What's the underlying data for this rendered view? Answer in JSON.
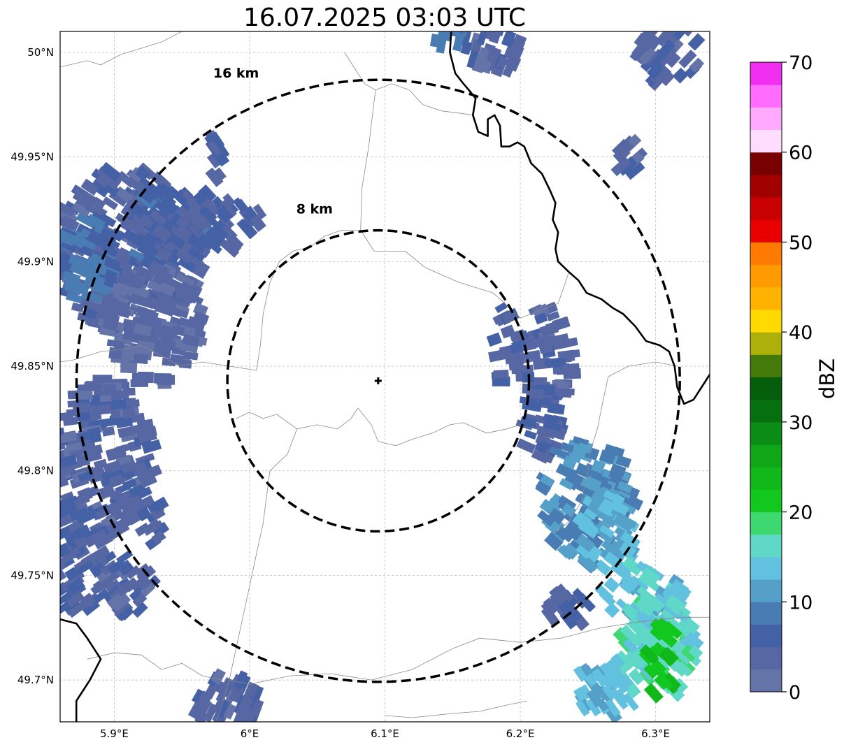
{
  "title": "16.07.2025 03:03 UTC",
  "map": {
    "lon_range": [
      5.86,
      6.34
    ],
    "lat_range": [
      49.68,
      50.01
    ],
    "lon_ticks": [
      {
        "value": 5.9,
        "label": "5.9°E"
      },
      {
        "value": 6.0,
        "label": "6°E"
      },
      {
        "value": 6.1,
        "label": "6.1°E"
      },
      {
        "value": 6.2,
        "label": "6.2°E"
      },
      {
        "value": 6.3,
        "label": "6.3°E"
      }
    ],
    "lat_ticks": [
      {
        "value": 50.0,
        "label": "50°N"
      },
      {
        "value": 49.95,
        "label": "49.95°N"
      },
      {
        "value": 49.9,
        "label": "49.9°N"
      },
      {
        "value": 49.85,
        "label": "49.85°N"
      },
      {
        "value": 49.8,
        "label": "49.8°N"
      },
      {
        "value": 49.75,
        "label": "49.75°N"
      },
      {
        "value": 49.7,
        "label": "49.7°N"
      }
    ],
    "grid": true,
    "radar_site": {
      "lon": 6.095,
      "lat": 49.843
    },
    "range_rings": [
      {
        "radius_km": 8,
        "label": "8 km",
        "label_lon": 6.048,
        "label_lat": 49.923
      },
      {
        "radius_km": 16,
        "label": "16 km",
        "label_lon": 5.99,
        "label_lat": 49.988
      }
    ],
    "country_border": [
      [
        6.149,
        50.01
      ],
      [
        6.148,
        50.0
      ],
      [
        6.152,
        49.99
      ],
      [
        6.158,
        49.985
      ],
      [
        6.162,
        49.982
      ],
      [
        6.167,
        49.978
      ],
      [
        6.165,
        49.97
      ],
      [
        6.169,
        49.962
      ],
      [
        6.176,
        49.96
      ],
      [
        6.176,
        49.968
      ],
      [
        6.181,
        49.97
      ],
      [
        6.185,
        49.965
      ],
      [
        6.186,
        49.955
      ],
      [
        6.192,
        49.955
      ],
      [
        6.198,
        49.957
      ],
      [
        6.203,
        49.955
      ],
      [
        6.208,
        49.947
      ],
      [
        6.216,
        49.942
      ],
      [
        6.222,
        49.934
      ],
      [
        6.226,
        49.928
      ],
      [
        6.224,
        49.92
      ],
      [
        6.228,
        49.914
      ],
      [
        6.226,
        49.906
      ],
      [
        6.228,
        49.9
      ],
      [
        6.236,
        49.895
      ],
      [
        6.243,
        49.891
      ],
      [
        6.249,
        49.885
      ],
      [
        6.26,
        49.882
      ],
      [
        6.268,
        49.878
      ],
      [
        6.276,
        49.875
      ],
      [
        6.285,
        49.869
      ],
      [
        6.293,
        49.862
      ],
      [
        6.303,
        49.86
      ],
      [
        6.31,
        49.857
      ],
      [
        6.314,
        49.85
      ],
      [
        6.316,
        49.84
      ],
      [
        6.321,
        49.832
      ],
      [
        6.328,
        49.834
      ],
      [
        6.334,
        49.84
      ],
      [
        6.34,
        49.846
      ]
    ],
    "border_sw": [
      [
        5.86,
        49.729
      ],
      [
        5.872,
        49.727
      ],
      [
        5.88,
        49.72
      ],
      [
        5.89,
        49.71
      ],
      [
        5.882,
        49.7
      ],
      [
        5.872,
        49.69
      ],
      [
        5.872,
        49.68
      ]
    ],
    "admin_lines": [
      [
        [
          5.86,
          49.993
        ],
        [
          5.88,
          49.996
        ],
        [
          5.89,
          49.994
        ],
        [
          5.905,
          49.999
        ],
        [
          5.92,
          50.002
        ],
        [
          5.935,
          50.005
        ],
        [
          5.95,
          50.01
        ]
      ],
      [
        [
          6.07,
          50.0
        ],
        [
          6.085,
          49.985
        ],
        [
          6.093,
          49.982
        ],
        [
          6.105,
          49.985
        ],
        [
          6.118,
          49.982
        ],
        [
          6.128,
          49.975
        ],
        [
          6.142,
          49.972
        ],
        [
          6.155,
          49.971
        ],
        [
          6.165,
          49.97
        ]
      ],
      [
        [
          6.093,
          49.982
        ],
        [
          6.088,
          49.955
        ],
        [
          6.083,
          49.935
        ],
        [
          6.082,
          49.915
        ],
        [
          6.092,
          49.905
        ],
        [
          6.115,
          49.905
        ],
        [
          6.13,
          49.897
        ],
        [
          6.155,
          49.89
        ],
        [
          6.18,
          49.885
        ],
        [
          6.192,
          49.878
        ],
        [
          6.2,
          49.873
        ],
        [
          6.228,
          49.88
        ],
        [
          6.236,
          49.895
        ]
      ],
      [
        [
          6.08,
          49.915
        ],
        [
          6.068,
          49.915
        ],
        [
          6.055,
          49.912
        ],
        [
          6.045,
          49.907
        ],
        [
          6.032,
          49.905
        ],
        [
          6.022,
          49.9
        ],
        [
          6.015,
          49.89
        ],
        [
          6.01,
          49.875
        ],
        [
          6.008,
          49.86
        ],
        [
          6.005,
          49.848
        ]
      ],
      [
        [
          6.005,
          49.848
        ],
        [
          5.985,
          49.85
        ],
        [
          5.965,
          49.852
        ],
        [
          5.948,
          49.85
        ],
        [
          5.935,
          49.855
        ],
        [
          5.92,
          49.86
        ],
        [
          5.905,
          49.858
        ],
        [
          5.89,
          49.857
        ],
        [
          5.87,
          49.853
        ],
        [
          5.86,
          49.852
        ]
      ],
      [
        [
          5.99,
          49.825
        ],
        [
          6.0,
          49.828
        ],
        [
          6.01,
          49.825
        ],
        [
          6.02,
          49.827
        ],
        [
          6.035,
          49.82
        ],
        [
          6.05,
          49.822
        ],
        [
          6.065,
          49.82
        ],
        [
          6.075,
          49.825
        ],
        [
          6.08,
          49.83
        ],
        [
          6.09,
          49.822
        ],
        [
          6.095,
          49.814
        ],
        [
          6.108,
          49.812
        ],
        [
          6.12,
          49.815
        ],
        [
          6.135,
          49.818
        ],
        [
          6.148,
          49.822
        ],
        [
          6.158,
          49.823
        ],
        [
          6.175,
          49.818
        ],
        [
          6.19,
          49.82
        ],
        [
          6.2,
          49.822
        ]
      ],
      [
        [
          6.035,
          49.82
        ],
        [
          6.028,
          49.808
        ],
        [
          6.015,
          49.8
        ],
        [
          6.012,
          49.785
        ],
        [
          6.01,
          49.775
        ],
        [
          6.005,
          49.76
        ],
        [
          6.0,
          49.745
        ],
        [
          5.995,
          49.73
        ],
        [
          5.99,
          49.715
        ],
        [
          5.985,
          49.7
        ],
        [
          5.978,
          49.685
        ],
        [
          5.975,
          49.68
        ]
      ],
      [
        [
          5.88,
          49.71
        ],
        [
          5.9,
          49.713
        ],
        [
          5.92,
          49.712
        ],
        [
          5.935,
          49.705
        ],
        [
          5.95,
          49.708
        ],
        [
          5.965,
          49.702
        ],
        [
          5.98,
          49.7
        ]
      ],
      [
        [
          5.985,
          49.7
        ],
        [
          6.0,
          49.698
        ],
        [
          6.03,
          49.702
        ],
        [
          6.06,
          49.703
        ],
        [
          6.09,
          49.7
        ],
        [
          6.12,
          49.705
        ],
        [
          6.15,
          49.715
        ],
        [
          6.17,
          49.72
        ],
        [
          6.2,
          49.718
        ],
        [
          6.23,
          49.72
        ],
        [
          6.26,
          49.725
        ],
        [
          6.29,
          49.728
        ],
        [
          6.32,
          49.73
        ],
        [
          6.34,
          49.73
        ]
      ],
      [
        [
          6.205,
          49.69
        ],
        [
          6.19,
          49.688
        ],
        [
          6.17,
          49.685
        ],
        [
          6.15,
          49.684
        ],
        [
          6.12,
          49.682
        ],
        [
          6.1,
          49.683
        ]
      ],
      [
        [
          6.265,
          49.845
        ],
        [
          6.28,
          49.85
        ],
        [
          6.3,
          49.852
        ],
        [
          6.316,
          49.85
        ]
      ],
      [
        [
          6.265,
          49.845
        ],
        [
          6.26,
          49.83
        ],
        [
          6.257,
          49.82
        ],
        [
          6.252,
          49.81
        ],
        [
          6.25,
          49.8
        ],
        [
          6.245,
          49.785
        ],
        [
          6.235,
          49.775
        ],
        [
          6.225,
          49.77
        ]
      ]
    ],
    "precip_blobs": [
      {
        "lon": 5.91,
        "lat": 49.905,
        "rlon": 0.055,
        "rlat": 0.04,
        "dbz": 4
      },
      {
        "lon": 5.94,
        "lat": 49.915,
        "rlon": 0.03,
        "rlat": 0.02,
        "dbz": 6
      },
      {
        "lon": 5.97,
        "lat": 49.92,
        "rlon": 0.04,
        "rlat": 0.015,
        "dbz": 5
      },
      {
        "lon": 5.93,
        "lat": 49.87,
        "rlon": 0.035,
        "rlat": 0.03,
        "dbz": 3
      },
      {
        "lon": 5.88,
        "lat": 49.9,
        "rlon": 0.02,
        "rlat": 0.02,
        "dbz": 8
      },
      {
        "lon": 5.89,
        "lat": 49.805,
        "rlon": 0.04,
        "rlat": 0.04,
        "dbz": 4
      },
      {
        "lon": 5.875,
        "lat": 49.76,
        "rlon": 0.02,
        "rlat": 0.03,
        "dbz": 5
      },
      {
        "lon": 5.91,
        "lat": 49.745,
        "rlon": 0.02,
        "rlat": 0.015,
        "dbz": 4
      },
      {
        "lon": 5.93,
        "lat": 49.775,
        "rlon": 0.01,
        "rlat": 0.01,
        "dbz": 5
      },
      {
        "lon": 6.22,
        "lat": 49.855,
        "rlon": 0.02,
        "rlat": 0.025,
        "dbz": 4
      },
      {
        "lon": 6.215,
        "lat": 49.825,
        "rlon": 0.015,
        "rlat": 0.02,
        "dbz": 5
      },
      {
        "lon": 6.25,
        "lat": 49.785,
        "rlon": 0.035,
        "rlat": 0.03,
        "dbz": 10
      },
      {
        "lon": 6.265,
        "lat": 49.77,
        "rlon": 0.02,
        "rlat": 0.02,
        "dbz": 13
      },
      {
        "lon": 6.29,
        "lat": 49.74,
        "rlon": 0.03,
        "rlat": 0.015,
        "dbz": 14
      },
      {
        "lon": 6.3,
        "lat": 49.715,
        "rlon": 0.03,
        "rlat": 0.025,
        "dbz": 16
      },
      {
        "lon": 6.305,
        "lat": 49.71,
        "rlon": 0.012,
        "rlat": 0.02,
        "dbz": 22
      },
      {
        "lon": 6.26,
        "lat": 49.695,
        "rlon": 0.025,
        "rlat": 0.012,
        "dbz": 13
      },
      {
        "lon": 6.235,
        "lat": 49.735,
        "rlon": 0.02,
        "rlat": 0.008,
        "dbz": 5
      },
      {
        "lon": 6.18,
        "lat": 50.0,
        "rlon": 0.02,
        "rlat": 0.012,
        "dbz": 4
      },
      {
        "lon": 6.15,
        "lat": 50.005,
        "rlon": 0.015,
        "rlat": 0.01,
        "dbz": 8
      },
      {
        "lon": 6.31,
        "lat": 50.0,
        "rlon": 0.025,
        "rlat": 0.015,
        "dbz": 4
      },
      {
        "lon": 6.28,
        "lat": 49.95,
        "rlon": 0.008,
        "rlat": 0.008,
        "dbz": 4
      },
      {
        "lon": 5.98,
        "lat": 49.69,
        "rlon": 0.03,
        "rlat": 0.012,
        "dbz": 4
      },
      {
        "lon": 5.975,
        "lat": 49.95,
        "rlon": 0.005,
        "rlat": 0.01,
        "dbz": 4
      },
      {
        "lon": 6.19,
        "lat": 49.86,
        "rlon": 0.01,
        "rlat": 0.02,
        "dbz": 5
      }
    ]
  },
  "colorbar": {
    "label": "dBZ",
    "min": 0,
    "max": 70,
    "step": 2.5,
    "ticks": [
      0,
      10,
      20,
      30,
      40,
      50,
      60,
      70
    ],
    "colors": [
      "#6474a8",
      "#5667a3",
      "#4561a6",
      "#4a7cb4",
      "#55a0c8",
      "#62c1de",
      "#60d8c8",
      "#3ed870",
      "#12c81e",
      "#10b81a",
      "#0fa618",
      "#0b8c14",
      "#067010",
      "#055e0c",
      "#447a0a",
      "#aeb00a",
      "#ffd900",
      "#ffb300",
      "#ff9a00",
      "#ff7a00",
      "#e80000",
      "#c80000",
      "#a00000",
      "#780000",
      "#ffddff",
      "#ffaaff",
      "#ff6cff",
      "#f02ff0"
    ]
  }
}
